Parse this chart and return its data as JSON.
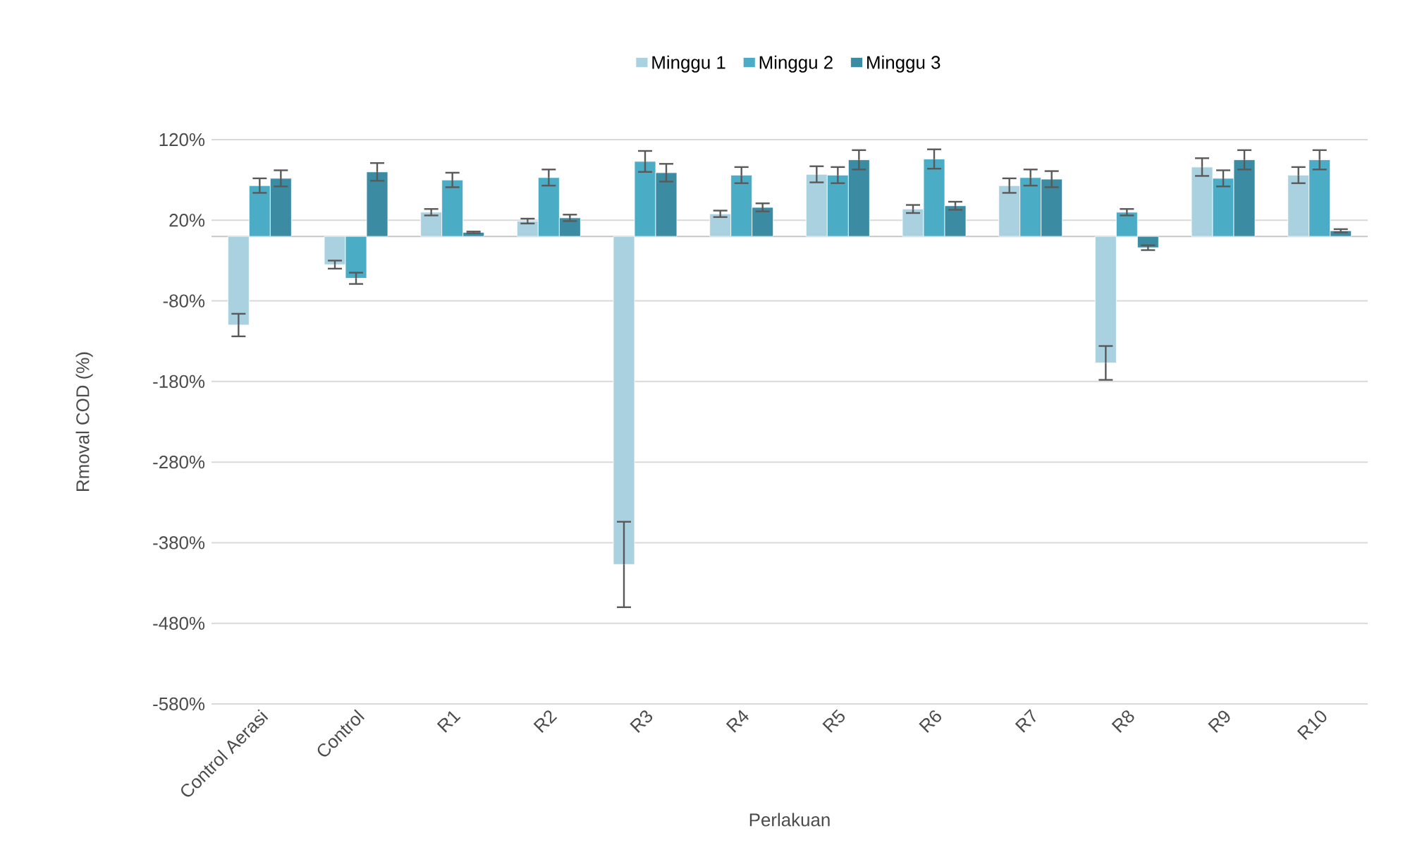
{
  "chart_data": {
    "type": "bar",
    "xlabel": "Perlakuan",
    "ylabel": "Rmoval COD (%)",
    "categories": [
      "Control Aerasi",
      "Control",
      "R1",
      "R2",
      "R3",
      "R4",
      "R5",
      "R6",
      "R7",
      "R8",
      "R9",
      "R10"
    ],
    "series": [
      {
        "name": "Minggu 1",
        "color": "#a9d1df",
        "values": [
          -110,
          -35,
          30,
          19,
          -407,
          28,
          77,
          34,
          63,
          -157,
          86,
          76
        ],
        "errors": [
          14,
          5,
          4,
          3,
          53,
          4,
          10,
          5,
          9,
          21,
          11,
          10
        ]
      },
      {
        "name": "Minggu 2",
        "color": "#4bacc6",
        "values": [
          63,
          -52,
          70,
          73,
          93,
          76,
          76,
          96,
          73,
          30,
          72,
          95
        ],
        "errors": [
          9,
          7,
          9,
          10,
          13,
          10,
          10,
          12,
          10,
          4,
          10,
          12
        ]
      },
      {
        "name": "Minggu 3",
        "color": "#3b8ca3",
        "values": [
          72,
          80,
          5,
          23,
          79,
          36,
          95,
          38,
          71,
          -14,
          95,
          7
        ],
        "errors": [
          10,
          11,
          1,
          4,
          11,
          5,
          12,
          5,
          10,
          3,
          12,
          2
        ]
      }
    ],
    "ylim": [
      -580,
      120
    ],
    "yticks": [
      {
        "value": 120,
        "label": "120%"
      },
      {
        "value": 20,
        "label": "20%"
      },
      {
        "value": -80,
        "label": "-80%"
      },
      {
        "value": -180,
        "label": "-180%"
      },
      {
        "value": -280,
        "label": "-280%"
      },
      {
        "value": -380,
        "label": "-380%"
      },
      {
        "value": -480,
        "label": "-480%"
      },
      {
        "value": -580,
        "label": "-580%"
      }
    ],
    "grid": "y",
    "legend": "top"
  }
}
